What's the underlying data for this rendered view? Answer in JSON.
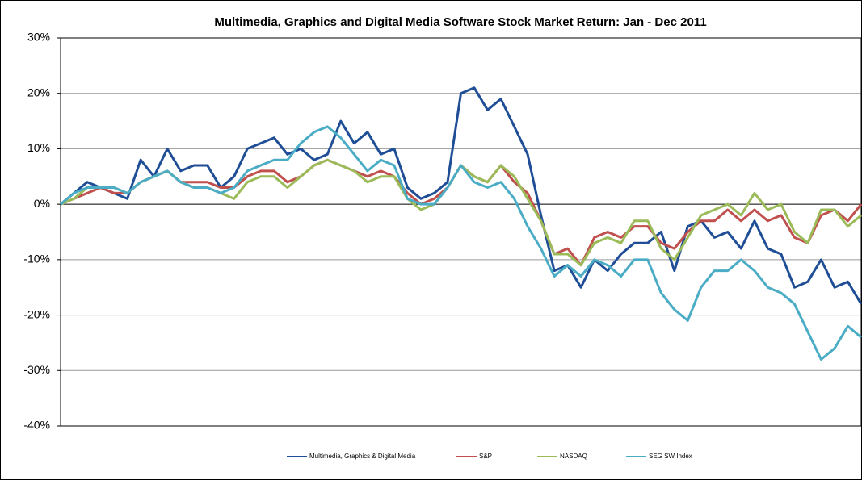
{
  "chart_data": {
    "type": "line",
    "title": "Multimedia, Graphics and Digital Media Software Stock Market Return: Jan - Dec 2011",
    "ylim": [
      -40,
      30
    ],
    "yticks": [
      {
        "value": -40,
        "label": "-40%"
      },
      {
        "value": -30,
        "label": "-30%"
      },
      {
        "value": -20,
        "label": "-20%"
      },
      {
        "value": -10,
        "label": "-10%"
      },
      {
        "value": 0,
        "label": "0%"
      },
      {
        "value": 10,
        "label": "10%"
      },
      {
        "value": 20,
        "label": "20%"
      },
      {
        "value": 30,
        "label": "30%"
      }
    ],
    "grid": true,
    "legend": "bottom",
    "series": [
      {
        "name": "Multimedia, Graphics & Digital Media",
        "color": "#1f4e96",
        "values": [
          0,
          2,
          4,
          3,
          2,
          1,
          8,
          5,
          10,
          6,
          7,
          7,
          3,
          5,
          10,
          11,
          12,
          9,
          10,
          8,
          9,
          15,
          11,
          13,
          9,
          10,
          3,
          1,
          2,
          4,
          20,
          21,
          17,
          19,
          14,
          9,
          -2,
          -12,
          -11,
          -15,
          -10,
          -12,
          -9,
          -7,
          -7,
          -5,
          -12,
          -4,
          -3,
          -6,
          -5,
          -8,
          -3,
          -8,
          -9,
          -15,
          -14,
          -10,
          -15,
          -14,
          -18
        ]
      },
      {
        "name": "S&P",
        "color": "#c0504d",
        "values": [
          0,
          1,
          2,
          3,
          2,
          2,
          4,
          5,
          6,
          4,
          4,
          4,
          3,
          3,
          5,
          6,
          6,
          4,
          5,
          7,
          8,
          7,
          6,
          5,
          6,
          5,
          2,
          0,
          1,
          3,
          7,
          5,
          4,
          7,
          4,
          2,
          -3,
          -9,
          -8,
          -11,
          -6,
          -5,
          -6,
          -4,
          -4,
          -7,
          -8,
          -5,
          -3,
          -3,
          -1,
          -3,
          -1,
          -3,
          -2,
          -6,
          -7,
          -2,
          -1,
          -3,
          0
        ]
      },
      {
        "name": "NASDAQ",
        "color": "#9bbb59",
        "values": [
          0,
          1,
          3,
          3,
          3,
          2,
          4,
          5,
          6,
          4,
          3,
          3,
          2,
          1,
          4,
          5,
          5,
          3,
          5,
          7,
          8,
          7,
          6,
          4,
          5,
          5,
          1,
          -1,
          0,
          3,
          7,
          5,
          4,
          7,
          5,
          1,
          -3,
          -9,
          -9,
          -11,
          -7,
          -6,
          -7,
          -3,
          -3,
          -8,
          -10,
          -6,
          -2,
          -1,
          0,
          -2,
          2,
          -1,
          0,
          -5,
          -7,
          -1,
          -1,
          -4,
          -2
        ]
      },
      {
        "name": "SEG SW Index",
        "color": "#4bacc6",
        "values": [
          0,
          2,
          3,
          3,
          3,
          2,
          4,
          5,
          6,
          4,
          3,
          3,
          2,
          3,
          6,
          7,
          8,
          8,
          11,
          13,
          14,
          12,
          9,
          6,
          8,
          7,
          1,
          0,
          0,
          3,
          7,
          4,
          3,
          4,
          1,
          -4,
          -8,
          -13,
          -11,
          -13,
          -10,
          -11,
          -13,
          -10,
          -10,
          -16,
          -19,
          -21,
          -15,
          -12,
          -12,
          -10,
          -12,
          -15,
          -16,
          -18,
          -23,
          -28,
          -26,
          -22,
          -24
        ]
      }
    ]
  }
}
